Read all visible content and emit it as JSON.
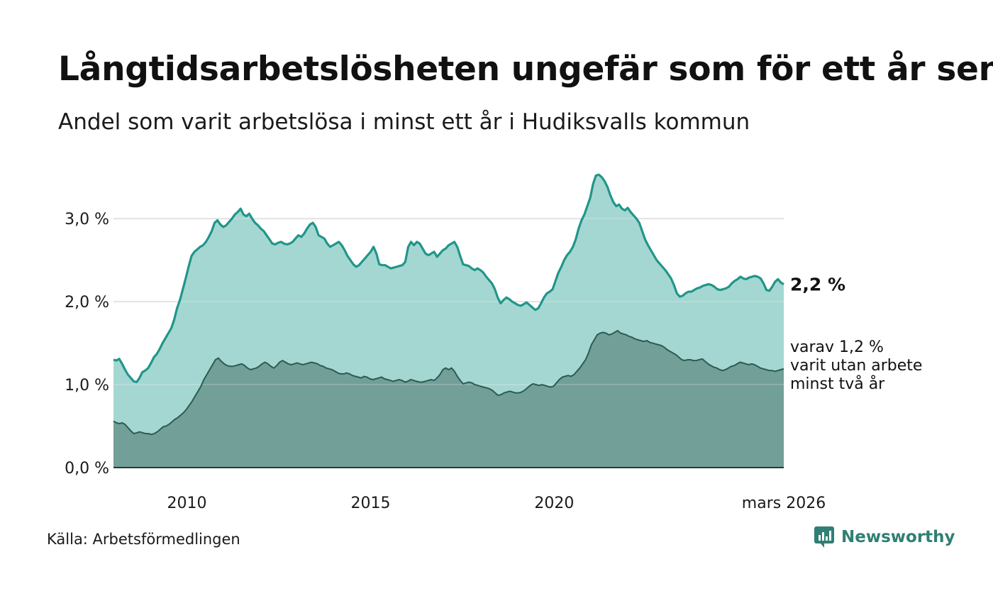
{
  "header": {
    "title": "Långtidsarbetslösheten ungefär som för ett år sen",
    "subtitle": "Andel som varit arbetslösa i minst ett år i Hudiksvalls kommun"
  },
  "footer": {
    "source": "Källa: Arbetsförmedlingen",
    "brand": "Newsworthy",
    "brand_icon": "newsworthy-logo-icon"
  },
  "colors": {
    "total_line": "#20968a",
    "total_fill": "#a5d7d2",
    "long_line": "#2c5b51",
    "long_fill": "#729f97",
    "grid": "#dddddd",
    "brand": "#2f7f74"
  },
  "chart_data": {
    "type": "area",
    "x_start": 2008.0,
    "x_step_years": 0.08333,
    "xlim": [
      2008.0,
      2026.25
    ],
    "ylim": [
      0,
      3.6
    ],
    "x_ticks": [
      {
        "value": 2010,
        "label": "2010"
      },
      {
        "value": 2015,
        "label": "2015"
      },
      {
        "value": 2020,
        "label": "2020"
      },
      {
        "value": 2026.25,
        "label": "mars 2026"
      }
    ],
    "y_ticks": [
      {
        "value": 0,
        "label": "0,0 %"
      },
      {
        "value": 1,
        "label": "1,0 %"
      },
      {
        "value": 2,
        "label": "2,0 %"
      },
      {
        "value": 3,
        "label": "3,0 %"
      }
    ],
    "grid": true,
    "series": [
      {
        "name": "Arbetslösa minst ett år",
        "end_label": "2,2 %",
        "values": [
          1.3,
          1.29,
          1.31,
          1.25,
          1.18,
          1.12,
          1.08,
          1.04,
          1.03,
          1.08,
          1.15,
          1.17,
          1.2,
          1.26,
          1.33,
          1.37,
          1.43,
          1.5,
          1.56,
          1.62,
          1.68,
          1.78,
          1.92,
          2.02,
          2.15,
          2.28,
          2.42,
          2.55,
          2.6,
          2.63,
          2.66,
          2.68,
          2.72,
          2.78,
          2.85,
          2.95,
          2.98,
          2.93,
          2.9,
          2.92,
          2.96,
          3.0,
          3.05,
          3.08,
          3.12,
          3.05,
          3.03,
          3.06,
          3.0,
          2.95,
          2.92,
          2.88,
          2.85,
          2.8,
          2.75,
          2.7,
          2.69,
          2.71,
          2.72,
          2.7,
          2.69,
          2.7,
          2.72,
          2.76,
          2.8,
          2.78,
          2.82,
          2.88,
          2.93,
          2.95,
          2.9,
          2.8,
          2.78,
          2.76,
          2.7,
          2.66,
          2.68,
          2.7,
          2.72,
          2.68,
          2.62,
          2.55,
          2.5,
          2.45,
          2.42,
          2.44,
          2.48,
          2.52,
          2.56,
          2.6,
          2.66,
          2.58,
          2.45,
          2.44,
          2.44,
          2.42,
          2.4,
          2.41,
          2.42,
          2.43,
          2.44,
          2.48,
          2.66,
          2.72,
          2.68,
          2.72,
          2.7,
          2.64,
          2.58,
          2.56,
          2.58,
          2.6,
          2.54,
          2.58,
          2.62,
          2.64,
          2.68,
          2.7,
          2.72,
          2.66,
          2.55,
          2.45,
          2.44,
          2.43,
          2.4,
          2.38,
          2.4,
          2.38,
          2.35,
          2.3,
          2.26,
          2.22,
          2.15,
          2.05,
          1.98,
          2.02,
          2.05,
          2.03,
          2.0,
          1.98,
          1.96,
          1.95,
          1.97,
          1.99,
          1.96,
          1.93,
          1.9,
          1.92,
          1.98,
          2.05,
          2.1,
          2.12,
          2.15,
          2.25,
          2.35,
          2.42,
          2.5,
          2.56,
          2.6,
          2.66,
          2.75,
          2.88,
          2.98,
          3.05,
          3.15,
          3.25,
          3.42,
          3.52,
          3.53,
          3.5,
          3.45,
          3.38,
          3.28,
          3.2,
          3.15,
          3.17,
          3.12,
          3.1,
          3.13,
          3.08,
          3.04,
          3.0,
          2.95,
          2.85,
          2.75,
          2.68,
          2.62,
          2.56,
          2.5,
          2.46,
          2.42,
          2.38,
          2.33,
          2.28,
          2.2,
          2.1,
          2.06,
          2.07,
          2.1,
          2.12,
          2.12,
          2.14,
          2.16,
          2.17,
          2.19,
          2.2,
          2.21,
          2.2,
          2.18,
          2.15,
          2.14,
          2.15,
          2.16,
          2.18,
          2.22,
          2.25,
          2.27,
          2.3,
          2.28,
          2.27,
          2.29,
          2.3,
          2.31,
          2.3,
          2.28,
          2.22,
          2.14,
          2.13,
          2.18,
          2.24,
          2.27,
          2.23,
          2.21
        ]
      },
      {
        "name": "Arbetslösa minst två år",
        "end_label_lines": [
          "varav 1,2 %",
          "varit utan arbete",
          "minst två år"
        ],
        "values": [
          0.56,
          0.54,
          0.53,
          0.54,
          0.52,
          0.48,
          0.44,
          0.41,
          0.42,
          0.43,
          0.42,
          0.41,
          0.41,
          0.4,
          0.41,
          0.43,
          0.46,
          0.49,
          0.5,
          0.52,
          0.55,
          0.58,
          0.6,
          0.63,
          0.66,
          0.7,
          0.75,
          0.8,
          0.86,
          0.92,
          0.98,
          1.06,
          1.12,
          1.18,
          1.24,
          1.3,
          1.32,
          1.28,
          1.25,
          1.23,
          1.22,
          1.22,
          1.23,
          1.24,
          1.25,
          1.23,
          1.2,
          1.18,
          1.19,
          1.2,
          1.22,
          1.25,
          1.27,
          1.25,
          1.22,
          1.2,
          1.23,
          1.27,
          1.29,
          1.27,
          1.25,
          1.24,
          1.25,
          1.26,
          1.25,
          1.24,
          1.25,
          1.26,
          1.27,
          1.26,
          1.25,
          1.23,
          1.22,
          1.2,
          1.19,
          1.18,
          1.16,
          1.14,
          1.13,
          1.13,
          1.14,
          1.13,
          1.11,
          1.1,
          1.09,
          1.08,
          1.1,
          1.09,
          1.07,
          1.06,
          1.07,
          1.08,
          1.09,
          1.07,
          1.06,
          1.05,
          1.04,
          1.05,
          1.06,
          1.05,
          1.03,
          1.04,
          1.06,
          1.05,
          1.04,
          1.03,
          1.03,
          1.04,
          1.05,
          1.06,
          1.05,
          1.08,
          1.12,
          1.18,
          1.2,
          1.18,
          1.2,
          1.16,
          1.1,
          1.05,
          1.01,
          1.02,
          1.03,
          1.02,
          1.0,
          0.99,
          0.98,
          0.97,
          0.96,
          0.95,
          0.93,
          0.9,
          0.87,
          0.88,
          0.9,
          0.91,
          0.92,
          0.91,
          0.9,
          0.9,
          0.91,
          0.93,
          0.96,
          0.99,
          1.01,
          1.0,
          0.99,
          1.0,
          0.99,
          0.98,
          0.97,
          0.98,
          1.02,
          1.06,
          1.09,
          1.1,
          1.11,
          1.1,
          1.12,
          1.16,
          1.2,
          1.25,
          1.3,
          1.38,
          1.48,
          1.54,
          1.6,
          1.62,
          1.63,
          1.62,
          1.6,
          1.61,
          1.63,
          1.65,
          1.62,
          1.61,
          1.6,
          1.58,
          1.57,
          1.55,
          1.54,
          1.53,
          1.52,
          1.53,
          1.51,
          1.5,
          1.49,
          1.48,
          1.47,
          1.45,
          1.42,
          1.4,
          1.38,
          1.36,
          1.33,
          1.3,
          1.29,
          1.3,
          1.3,
          1.29,
          1.29,
          1.3,
          1.31,
          1.28,
          1.25,
          1.23,
          1.21,
          1.2,
          1.18,
          1.17,
          1.18,
          1.2,
          1.22,
          1.23,
          1.25,
          1.27,
          1.26,
          1.25,
          1.24,
          1.25,
          1.24,
          1.22,
          1.2,
          1.19,
          1.18,
          1.17,
          1.17,
          1.16,
          1.17,
          1.18,
          1.19
        ]
      }
    ]
  }
}
